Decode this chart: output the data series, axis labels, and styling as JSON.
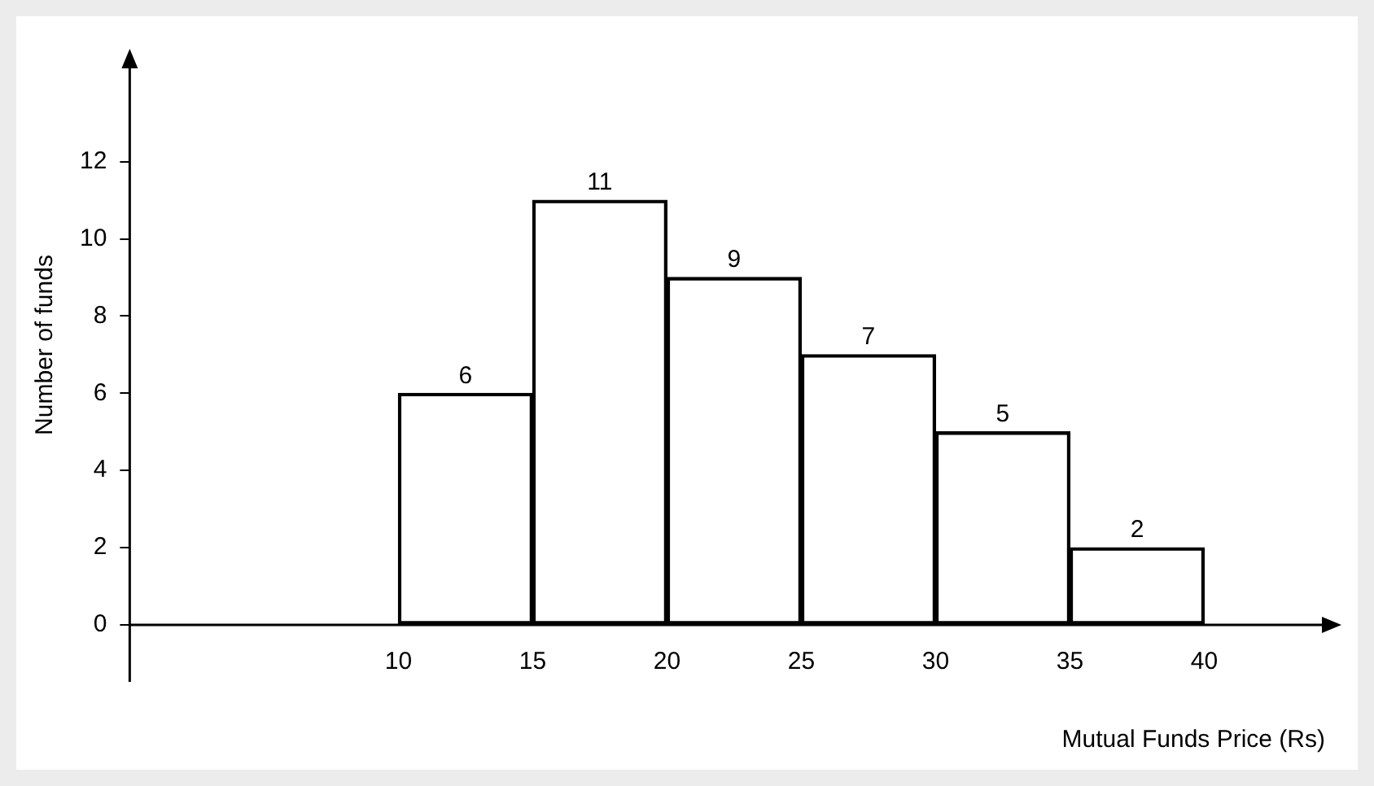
{
  "chart_data": {
    "type": "histogram",
    "xlabel": "Mutual Funds Price (Rs)",
    "ylabel": "Number of funds",
    "bins": [
      10,
      15,
      20,
      25,
      30,
      35,
      40
    ],
    "values": [
      6,
      11,
      9,
      7,
      5,
      2
    ],
    "color": "#000000",
    "xlim": [
      0,
      44.5
    ],
    "ylim": [
      0,
      14.5
    ],
    "xticks": [
      10,
      15,
      20,
      25,
      30,
      35,
      40
    ],
    "yticks": [
      0,
      2,
      4,
      6,
      8,
      10,
      12
    ],
    "data_labels": true,
    "grid": false,
    "legend": false
  }
}
